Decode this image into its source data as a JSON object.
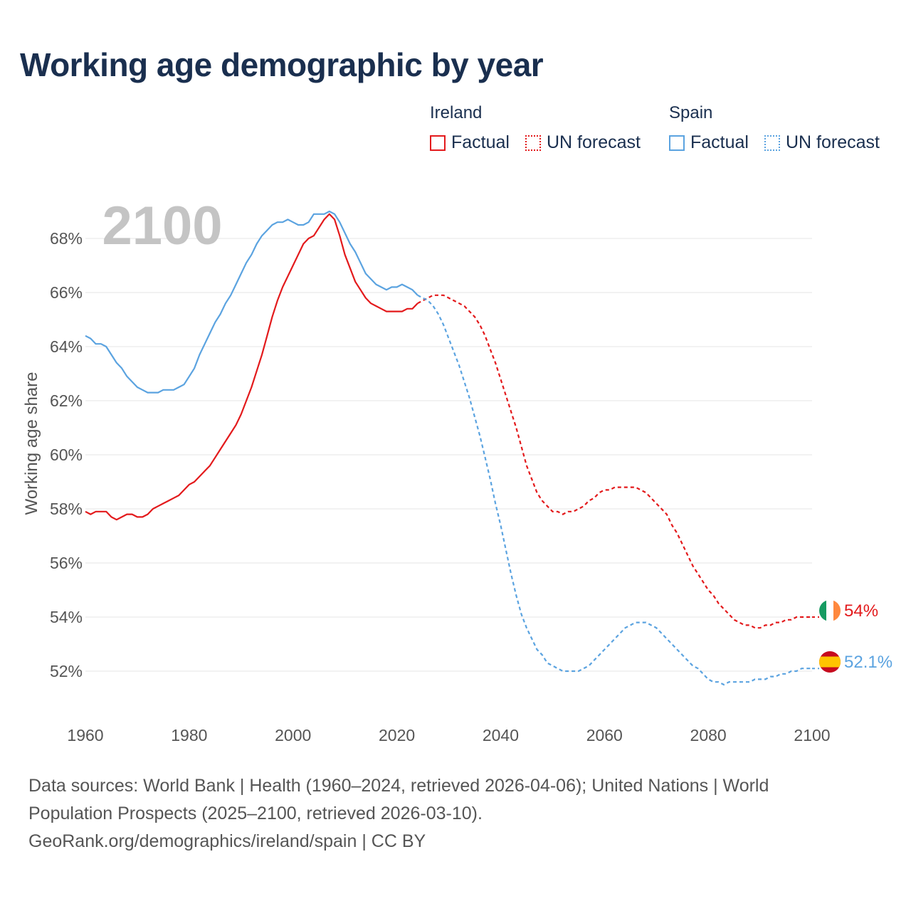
{
  "title": "Working age demographic by year",
  "legend": {
    "groups": [
      {
        "name": "Ireland",
        "factual_label": "Factual",
        "forecast_label": "UN forecast",
        "color": "#e31a1c"
      },
      {
        "name": "Spain",
        "factual_label": "Factual",
        "forecast_label": "UN forecast",
        "color": "#5ba3e0"
      }
    ]
  },
  "year_overlay": "2100",
  "chart_data": {
    "type": "line",
    "ylabel": "Working age share",
    "xlabel": "",
    "xlim": [
      1960,
      2100
    ],
    "ylim": [
      50.5,
      69.5
    ],
    "x_ticks": [
      1960,
      1980,
      2000,
      2020,
      2040,
      2060,
      2080,
      2100
    ],
    "x_tick_labels": [
      "1960",
      "1980",
      "2000",
      "2020",
      "2040",
      "2060",
      "2080",
      "2100"
    ],
    "y_ticks": [
      52,
      54,
      56,
      58,
      60,
      62,
      64,
      66,
      68
    ],
    "y_tick_labels": [
      "52%",
      "54%",
      "56%",
      "58%",
      "60%",
      "62%",
      "64%",
      "66%",
      "68%"
    ],
    "grid": true,
    "series": [
      {
        "name": "Ireland",
        "color": "#e31a1c",
        "end_label": "54%",
        "flag": "ireland-flag",
        "factual": [
          [
            1960,
            57.9
          ],
          [
            1961,
            57.8
          ],
          [
            1962,
            57.9
          ],
          [
            1963,
            57.9
          ],
          [
            1964,
            57.9
          ],
          [
            1965,
            57.7
          ],
          [
            1966,
            57.6
          ],
          [
            1967,
            57.7
          ],
          [
            1968,
            57.8
          ],
          [
            1969,
            57.8
          ],
          [
            1970,
            57.7
          ],
          [
            1971,
            57.7
          ],
          [
            1972,
            57.8
          ],
          [
            1973,
            58.0
          ],
          [
            1974,
            58.1
          ],
          [
            1975,
            58.2
          ],
          [
            1976,
            58.3
          ],
          [
            1977,
            58.4
          ],
          [
            1978,
            58.5
          ],
          [
            1979,
            58.7
          ],
          [
            1980,
            58.9
          ],
          [
            1981,
            59.0
          ],
          [
            1982,
            59.2
          ],
          [
            1983,
            59.4
          ],
          [
            1984,
            59.6
          ],
          [
            1985,
            59.9
          ],
          [
            1986,
            60.2
          ],
          [
            1987,
            60.5
          ],
          [
            1988,
            60.8
          ],
          [
            1989,
            61.1
          ],
          [
            1990,
            61.5
          ],
          [
            1991,
            62.0
          ],
          [
            1992,
            62.5
          ],
          [
            1993,
            63.1
          ],
          [
            1994,
            63.7
          ],
          [
            1995,
            64.4
          ],
          [
            1996,
            65.1
          ],
          [
            1997,
            65.7
          ],
          [
            1998,
            66.2
          ],
          [
            1999,
            66.6
          ],
          [
            2000,
            67.0
          ],
          [
            2001,
            67.4
          ],
          [
            2002,
            67.8
          ],
          [
            2003,
            68.0
          ],
          [
            2004,
            68.1
          ],
          [
            2005,
            68.4
          ],
          [
            2006,
            68.7
          ],
          [
            2007,
            68.9
          ],
          [
            2008,
            68.7
          ],
          [
            2009,
            68.1
          ],
          [
            2010,
            67.4
          ],
          [
            2011,
            66.9
          ],
          [
            2012,
            66.4
          ],
          [
            2013,
            66.1
          ],
          [
            2014,
            65.8
          ],
          [
            2015,
            65.6
          ],
          [
            2016,
            65.5
          ],
          [
            2017,
            65.4
          ],
          [
            2018,
            65.3
          ],
          [
            2019,
            65.3
          ],
          [
            2020,
            65.3
          ],
          [
            2021,
            65.3
          ],
          [
            2022,
            65.4
          ],
          [
            2023,
            65.4
          ],
          [
            2024,
            65.6
          ]
        ],
        "forecast": [
          [
            2024,
            65.6
          ],
          [
            2025,
            65.7
          ],
          [
            2026,
            65.8
          ],
          [
            2027,
            65.9
          ],
          [
            2028,
            65.9
          ],
          [
            2029,
            65.9
          ],
          [
            2030,
            65.8
          ],
          [
            2031,
            65.7
          ],
          [
            2032,
            65.6
          ],
          [
            2033,
            65.5
          ],
          [
            2034,
            65.3
          ],
          [
            2035,
            65.1
          ],
          [
            2036,
            64.8
          ],
          [
            2037,
            64.4
          ],
          [
            2038,
            63.9
          ],
          [
            2039,
            63.4
          ],
          [
            2040,
            62.8
          ],
          [
            2041,
            62.2
          ],
          [
            2042,
            61.6
          ],
          [
            2043,
            61.0
          ],
          [
            2044,
            60.3
          ],
          [
            2045,
            59.6
          ],
          [
            2046,
            59.1
          ],
          [
            2047,
            58.6
          ],
          [
            2048,
            58.3
          ],
          [
            2049,
            58.1
          ],
          [
            2050,
            57.9
          ],
          [
            2051,
            57.9
          ],
          [
            2052,
            57.8
          ],
          [
            2053,
            57.9
          ],
          [
            2054,
            57.9
          ],
          [
            2055,
            58.0
          ],
          [
            2056,
            58.1
          ],
          [
            2057,
            58.3
          ],
          [
            2058,
            58.4
          ],
          [
            2059,
            58.6
          ],
          [
            2060,
            58.7
          ],
          [
            2061,
            58.7
          ],
          [
            2062,
            58.8
          ],
          [
            2063,
            58.8
          ],
          [
            2064,
            58.8
          ],
          [
            2065,
            58.8
          ],
          [
            2066,
            58.8
          ],
          [
            2067,
            58.7
          ],
          [
            2068,
            58.6
          ],
          [
            2069,
            58.4
          ],
          [
            2070,
            58.2
          ],
          [
            2071,
            58.0
          ],
          [
            2072,
            57.8
          ],
          [
            2073,
            57.4
          ],
          [
            2074,
            57.1
          ],
          [
            2075,
            56.7
          ],
          [
            2076,
            56.3
          ],
          [
            2077,
            55.9
          ],
          [
            2078,
            55.6
          ],
          [
            2079,
            55.3
          ],
          [
            2080,
            55.0
          ],
          [
            2081,
            54.8
          ],
          [
            2082,
            54.5
          ],
          [
            2083,
            54.3
          ],
          [
            2084,
            54.1
          ],
          [
            2085,
            53.9
          ],
          [
            2086,
            53.8
          ],
          [
            2087,
            53.7
          ],
          [
            2088,
            53.7
          ],
          [
            2089,
            53.6
          ],
          [
            2090,
            53.6
          ],
          [
            2091,
            53.7
          ],
          [
            2092,
            53.7
          ],
          [
            2093,
            53.8
          ],
          [
            2094,
            53.8
          ],
          [
            2095,
            53.9
          ],
          [
            2096,
            53.9
          ],
          [
            2097,
            54.0
          ],
          [
            2098,
            54.0
          ],
          [
            2099,
            54.0
          ],
          [
            2100,
            54.0
          ]
        ]
      },
      {
        "name": "Spain",
        "color": "#5ba3e0",
        "end_label": "52.1%",
        "flag": "spain-flag",
        "factual": [
          [
            1960,
            64.4
          ],
          [
            1961,
            64.3
          ],
          [
            1962,
            64.1
          ],
          [
            1963,
            64.1
          ],
          [
            1964,
            64.0
          ],
          [
            1965,
            63.7
          ],
          [
            1966,
            63.4
          ],
          [
            1967,
            63.2
          ],
          [
            1968,
            62.9
          ],
          [
            1969,
            62.7
          ],
          [
            1970,
            62.5
          ],
          [
            1971,
            62.4
          ],
          [
            1972,
            62.3
          ],
          [
            1973,
            62.3
          ],
          [
            1974,
            62.3
          ],
          [
            1975,
            62.4
          ],
          [
            1976,
            62.4
          ],
          [
            1977,
            62.4
          ],
          [
            1978,
            62.5
          ],
          [
            1979,
            62.6
          ],
          [
            1980,
            62.9
          ],
          [
            1981,
            63.2
          ],
          [
            1982,
            63.7
          ],
          [
            1983,
            64.1
          ],
          [
            1984,
            64.5
          ],
          [
            1985,
            64.9
          ],
          [
            1986,
            65.2
          ],
          [
            1987,
            65.6
          ],
          [
            1988,
            65.9
          ],
          [
            1989,
            66.3
          ],
          [
            1990,
            66.7
          ],
          [
            1991,
            67.1
          ],
          [
            1992,
            67.4
          ],
          [
            1993,
            67.8
          ],
          [
            1994,
            68.1
          ],
          [
            1995,
            68.3
          ],
          [
            1996,
            68.5
          ],
          [
            1997,
            68.6
          ],
          [
            1998,
            68.6
          ],
          [
            1999,
            68.7
          ],
          [
            2000,
            68.6
          ],
          [
            2001,
            68.5
          ],
          [
            2002,
            68.5
          ],
          [
            2003,
            68.6
          ],
          [
            2004,
            68.9
          ],
          [
            2005,
            68.9
          ],
          [
            2006,
            68.9
          ],
          [
            2007,
            69.0
          ],
          [
            2008,
            68.9
          ],
          [
            2009,
            68.6
          ],
          [
            2010,
            68.2
          ],
          [
            2011,
            67.8
          ],
          [
            2012,
            67.5
          ],
          [
            2013,
            67.1
          ],
          [
            2014,
            66.7
          ],
          [
            2015,
            66.5
          ],
          [
            2016,
            66.3
          ],
          [
            2017,
            66.2
          ],
          [
            2018,
            66.1
          ],
          [
            2019,
            66.2
          ],
          [
            2020,
            66.2
          ],
          [
            2021,
            66.3
          ],
          [
            2022,
            66.2
          ],
          [
            2023,
            66.1
          ],
          [
            2024,
            65.9
          ]
        ],
        "forecast": [
          [
            2024,
            65.9
          ],
          [
            2025,
            65.8
          ],
          [
            2026,
            65.7
          ],
          [
            2027,
            65.5
          ],
          [
            2028,
            65.2
          ],
          [
            2029,
            64.8
          ],
          [
            2030,
            64.3
          ],
          [
            2031,
            63.8
          ],
          [
            2032,
            63.3
          ],
          [
            2033,
            62.7
          ],
          [
            2034,
            62.1
          ],
          [
            2035,
            61.4
          ],
          [
            2036,
            60.7
          ],
          [
            2037,
            59.9
          ],
          [
            2038,
            59.1
          ],
          [
            2039,
            58.2
          ],
          [
            2040,
            57.4
          ],
          [
            2041,
            56.5
          ],
          [
            2042,
            55.6
          ],
          [
            2043,
            54.8
          ],
          [
            2044,
            54.1
          ],
          [
            2045,
            53.6
          ],
          [
            2046,
            53.2
          ],
          [
            2047,
            52.8
          ],
          [
            2048,
            52.6
          ],
          [
            2049,
            52.3
          ],
          [
            2050,
            52.2
          ],
          [
            2051,
            52.1
          ],
          [
            2052,
            52.0
          ],
          [
            2053,
            52.0
          ],
          [
            2054,
            52.0
          ],
          [
            2055,
            52.0
          ],
          [
            2056,
            52.1
          ],
          [
            2057,
            52.2
          ],
          [
            2058,
            52.4
          ],
          [
            2059,
            52.6
          ],
          [
            2060,
            52.8
          ],
          [
            2061,
            53.0
          ],
          [
            2062,
            53.2
          ],
          [
            2063,
            53.4
          ],
          [
            2064,
            53.6
          ],
          [
            2065,
            53.7
          ],
          [
            2066,
            53.8
          ],
          [
            2067,
            53.8
          ],
          [
            2068,
            53.8
          ],
          [
            2069,
            53.7
          ],
          [
            2070,
            53.6
          ],
          [
            2071,
            53.4
          ],
          [
            2072,
            53.2
          ],
          [
            2073,
            53.0
          ],
          [
            2074,
            52.8
          ],
          [
            2075,
            52.6
          ],
          [
            2076,
            52.4
          ],
          [
            2077,
            52.2
          ],
          [
            2078,
            52.1
          ],
          [
            2079,
            51.9
          ],
          [
            2080,
            51.7
          ],
          [
            2081,
            51.6
          ],
          [
            2082,
            51.6
          ],
          [
            2083,
            51.5
          ],
          [
            2084,
            51.6
          ],
          [
            2085,
            51.6
          ],
          [
            2086,
            51.6
          ],
          [
            2087,
            51.6
          ],
          [
            2088,
            51.6
          ],
          [
            2089,
            51.7
          ],
          [
            2090,
            51.7
          ],
          [
            2091,
            51.7
          ],
          [
            2092,
            51.8
          ],
          [
            2093,
            51.8
          ],
          [
            2094,
            51.9
          ],
          [
            2095,
            51.9
          ],
          [
            2096,
            52.0
          ],
          [
            2097,
            52.0
          ],
          [
            2098,
            52.1
          ],
          [
            2099,
            52.1
          ],
          [
            2100,
            52.1
          ]
        ]
      }
    ]
  },
  "footer": {
    "line1": "Data sources: World Bank | Health (1960–2024, retrieved 2026-04-06); United Nations | World",
    "line2": "Population Prospects (2025–2100, retrieved 2026-03-10).",
    "line3": "GeoRank.org/demographics/ireland/spain | CC BY"
  }
}
